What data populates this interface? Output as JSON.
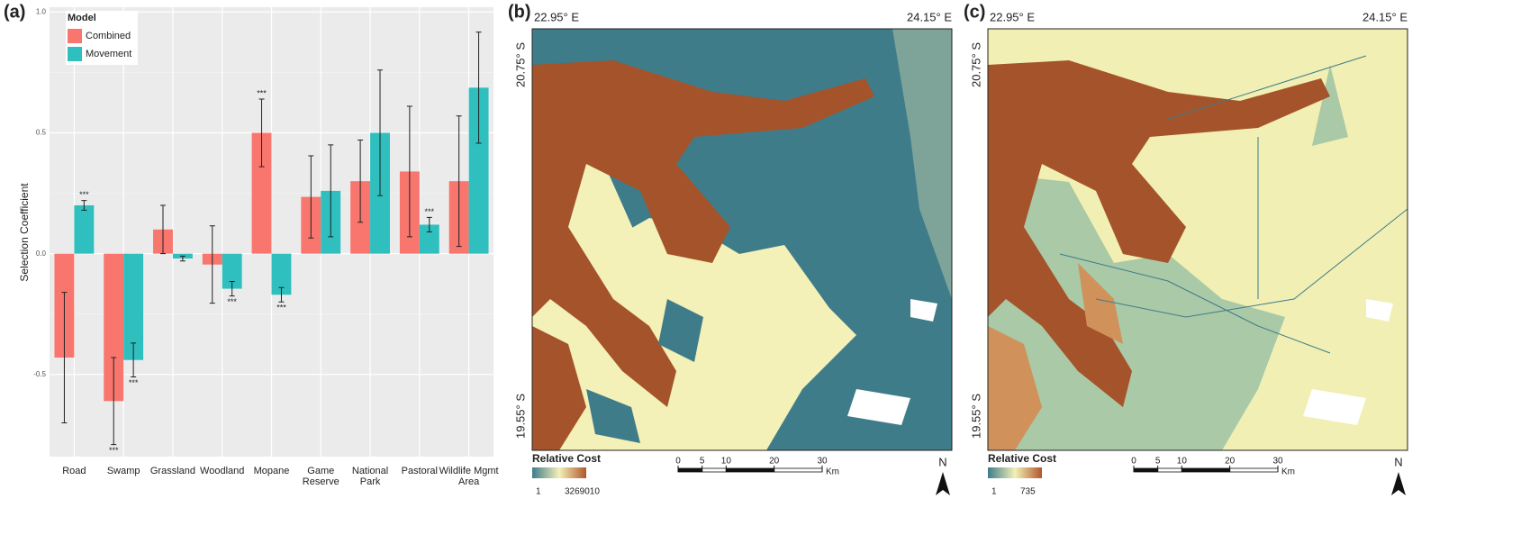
{
  "chart_data": {
    "type": "bar",
    "panel_label": "(a)",
    "y_label": "Selection Coefficient",
    "categories": [
      "Road",
      "Swamp",
      "Grassland",
      "Woodland",
      "Mopane",
      "Game\nReserve",
      "National\nPark",
      "Pastoral",
      "Wildlife Mgmt\nArea"
    ],
    "legend_title": "Model",
    "legend": "top-left",
    "grid": true,
    "series": [
      {
        "name": "Combined",
        "color": "#f8766d",
        "values": [
          -0.43,
          -0.61,
          0.1,
          -0.045,
          0.5,
          0.235,
          0.3,
          0.34,
          0.3
        ],
        "errors": [
          0.27,
          0.18,
          0.1,
          0.16,
          0.14,
          0.17,
          0.17,
          0.27,
          0.27
        ],
        "significance": [
          null,
          "***",
          null,
          null,
          "***",
          null,
          null,
          null,
          null
        ]
      },
      {
        "name": "Movement",
        "color": "#2fbfbf",
        "values": [
          0.2,
          -0.44,
          -0.02,
          -0.145,
          -0.17,
          0.26,
          0.5,
          0.12,
          0.687
        ],
        "errors": [
          0.02,
          0.07,
          0.01,
          0.03,
          0.03,
          0.19,
          0.26,
          0.03,
          0.23
        ],
        "significance": [
          "***",
          "***",
          null,
          "***",
          "***",
          null,
          null,
          "***",
          null
        ]
      }
    ],
    "ylim": [
      -0.84,
      1.02
    ],
    "yticks": [
      -0.5,
      {
        "value": 0,
        "label": "0.0"
      },
      0.5,
      {
        "value": 1,
        "label": "1.0"
      }
    ]
  },
  "maps": [
    {
      "panel_label": "(b)",
      "lon_left": "22.95° E",
      "lon_right": "24.15° E",
      "lat_top": "20.75° S",
      "lat_bottom": "19.55° S",
      "colorbar": {
        "title": "Relative Cost",
        "min": 1,
        "max": 3269010
      },
      "scale": {
        "ticks": [
          0,
          5,
          10,
          20,
          30
        ],
        "unit": "Km"
      },
      "north": "N"
    },
    {
      "panel_label": "(c)",
      "lon_left": "22.95° E",
      "lon_right": "24.15° E",
      "lat_top": "20.75° S",
      "lat_bottom": "19.55° S",
      "colorbar": {
        "title": "Relative Cost",
        "min": 1,
        "max": 735
      },
      "scale": {
        "ticks": [
          0,
          5,
          10,
          20,
          30
        ],
        "unit": "Km"
      },
      "north": "N"
    }
  ]
}
